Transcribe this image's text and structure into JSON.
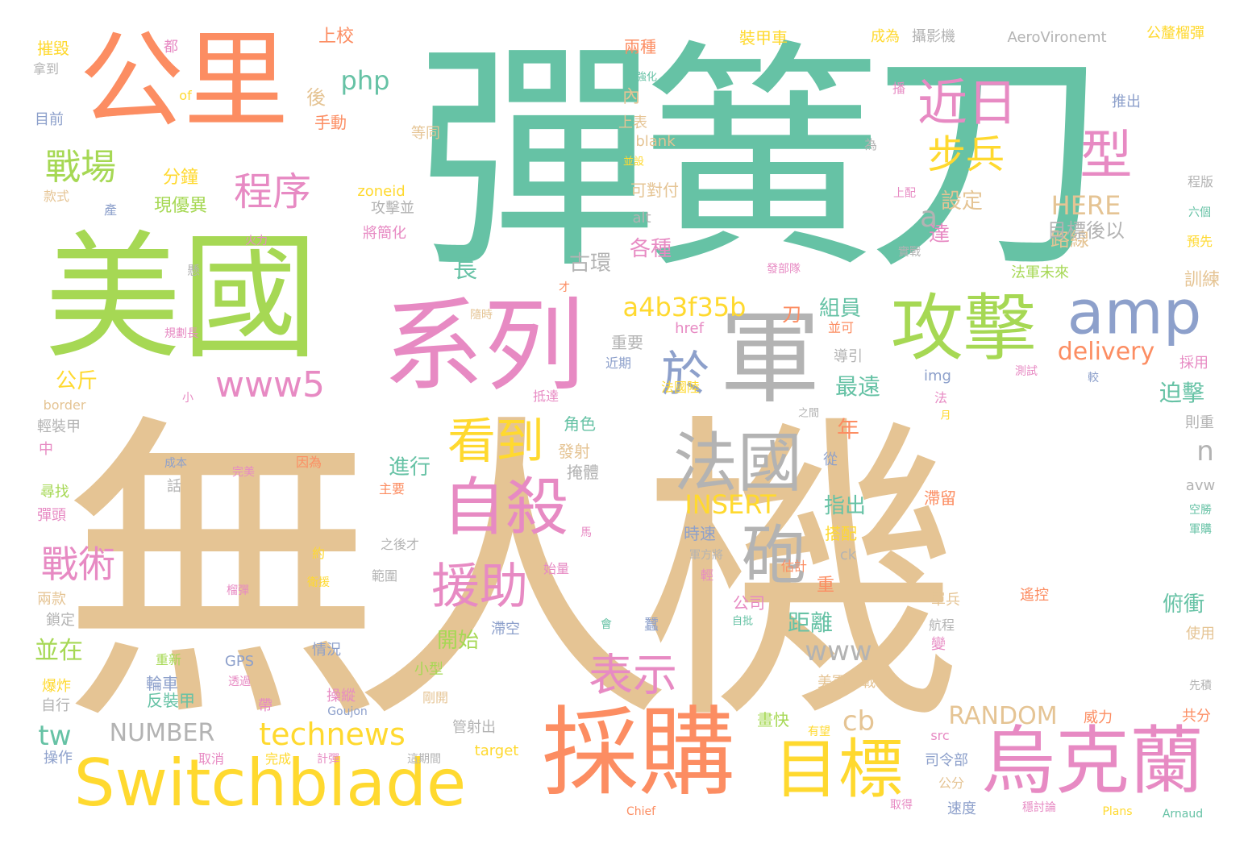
{
  "palette": {
    "tan": "#e5c494",
    "teal": "#66c2a5",
    "orange": "#fc8d62",
    "green": "#a6d854",
    "pink": "#e78ac3",
    "blue": "#8da0cb",
    "yellow": "#ffd92f",
    "gray": "#b3b3b3"
  },
  "words": [
    {
      "text": "無人機",
      "color": "tan"
    },
    {
      "text": "彈簧刀",
      "color": "teal"
    },
    {
      "text": "美國",
      "color": "green"
    },
    {
      "text": "公里",
      "color": "orange"
    },
    {
      "text": "系列",
      "color": "pink"
    },
    {
      "text": "軍",
      "color": "gray"
    },
    {
      "text": "攻擊",
      "color": "green"
    },
    {
      "text": "amp",
      "color": "blue"
    },
    {
      "text": "採購",
      "color": "orange"
    },
    {
      "text": "Switchblade",
      "color": "yellow"
    },
    {
      "text": "烏克蘭",
      "color": "pink"
    },
    {
      "text": "目標",
      "color": "yellow"
    },
    {
      "text": "法國",
      "color": "gray"
    },
    {
      "text": "自殺",
      "color": "pink"
    },
    {
      "text": "砲",
      "color": "gray"
    },
    {
      "text": "看到",
      "color": "yellow"
    },
    {
      "text": "於",
      "color": "blue"
    },
    {
      "text": "援助",
      "color": "pink"
    },
    {
      "text": "表示",
      "color": "pink"
    },
    {
      "text": "近日",
      "color": "pink"
    },
    {
      "text": "步兵",
      "color": "yellow"
    },
    {
      "text": "型",
      "color": "pink"
    },
    {
      "text": "戰場",
      "color": "green"
    },
    {
      "text": "程序",
      "color": "pink"
    },
    {
      "text": "www5",
      "color": "pink"
    },
    {
      "text": "戰術",
      "color": "pink"
    },
    {
      "text": "technews",
      "color": "yellow"
    },
    {
      "text": "a4b3f35b",
      "color": "yellow"
    },
    {
      "text": "delivery",
      "color": "orange"
    },
    {
      "text": "www",
      "color": "gray"
    },
    {
      "text": "RANDOM",
      "color": "tan"
    },
    {
      "text": "INSERT",
      "color": "yellow"
    },
    {
      "text": "NUMBER",
      "color": "gray"
    },
    {
      "text": "php",
      "color": "teal"
    },
    {
      "text": "HERE",
      "color": "tan"
    },
    {
      "text": "a",
      "color": "gray"
    },
    {
      "text": "tw",
      "color": "teal"
    },
    {
      "text": "cb",
      "color": "tan"
    },
    {
      "text": "n",
      "color": "gray"
    },
    {
      "text": "分鐘",
      "color": "yellow"
    },
    {
      "text": "並在",
      "color": "green"
    },
    {
      "text": "開始",
      "color": "green"
    },
    {
      "text": "距離",
      "color": "teal"
    },
    {
      "text": "指出",
      "color": "teal"
    },
    {
      "text": "進行",
      "color": "teal"
    },
    {
      "text": "組員",
      "color": "teal"
    },
    {
      "text": "最遠",
      "color": "teal"
    },
    {
      "text": "年",
      "color": "orange"
    },
    {
      "text": "迫擊",
      "color": "teal"
    },
    {
      "text": "俯衝",
      "color": "teal"
    },
    {
      "text": "公斤",
      "color": "yellow"
    },
    {
      "text": "長",
      "color": "teal"
    },
    {
      "text": "古環",
      "color": "gray"
    },
    {
      "text": "各種",
      "color": "pink"
    },
    {
      "text": "路線",
      "color": "tan"
    },
    {
      "text": "目標後以",
      "color": "gray"
    },
    {
      "text": "設定",
      "color": "tan"
    },
    {
      "text": "達",
      "color": "pink"
    },
    {
      "text": "訓練",
      "color": "tan"
    },
    {
      "text": "上校",
      "color": "orange"
    },
    {
      "text": "後",
      "color": "tan"
    },
    {
      "text": "內",
      "color": "tan"
    },
    {
      "text": "現優異",
      "color": "green"
    },
    {
      "text": "手動",
      "color": "orange"
    },
    {
      "text": "刀",
      "color": "orange"
    },
    {
      "text": "時速",
      "color": "blue"
    },
    {
      "text": "公司",
      "color": "pink"
    },
    {
      "text": "裝甲車",
      "color": "yellow"
    },
    {
      "text": "成為",
      "color": "yellow"
    },
    {
      "text": "攝影機",
      "color": "gray"
    },
    {
      "text": "AeroVironemt",
      "color": "gray"
    },
    {
      "text": "公釐榴彈",
      "color": "yellow"
    },
    {
      "text": "摧毀",
      "color": "yellow"
    },
    {
      "text": "兩種",
      "color": "orange"
    },
    {
      "text": "推出",
      "color": "blue"
    },
    {
      "text": "等同",
      "color": "tan"
    },
    {
      "text": "上表",
      "color": "tan"
    },
    {
      "text": "blank",
      "color": "tan"
    },
    {
      "text": "可對付",
      "color": "tan"
    },
    {
      "text": "zoneid",
      "color": "yellow"
    },
    {
      "text": "攻擊並",
      "color": "gray"
    },
    {
      "text": "將簡化",
      "color": "pink"
    },
    {
      "text": "alt",
      "color": "gray"
    },
    {
      "text": "href",
      "color": "pink"
    },
    {
      "text": "重要",
      "color": "gray"
    },
    {
      "text": "近期",
      "color": "blue"
    },
    {
      "text": "發射",
      "color": "tan"
    },
    {
      "text": "掩體",
      "color": "gray"
    },
    {
      "text": "角色",
      "color": "teal"
    },
    {
      "text": "抵達",
      "color": "pink"
    },
    {
      "text": "法國陸",
      "color": "yellow"
    },
    {
      "text": "法軍未來",
      "color": "green"
    },
    {
      "text": "採用",
      "color": "pink"
    },
    {
      "text": "測試",
      "color": "pink"
    },
    {
      "text": "則重",
      "color": "gray"
    },
    {
      "text": "img",
      "color": "blue"
    },
    {
      "text": "滯留",
      "color": "orange"
    },
    {
      "text": "滯空",
      "color": "blue"
    },
    {
      "text": "搭配",
      "color": "yellow"
    },
    {
      "text": "估計",
      "color": "orange"
    },
    {
      "text": "遙控",
      "color": "orange"
    },
    {
      "text": "單兵",
      "color": "tan"
    },
    {
      "text": "航程",
      "color": "gray"
    },
    {
      "text": "使用",
      "color": "tan"
    },
    {
      "text": "共分",
      "color": "orange"
    },
    {
      "text": "美軍特戰",
      "color": "tan"
    },
    {
      "text": "威力",
      "color": "orange"
    },
    {
      "text": "司令部",
      "color": "blue"
    },
    {
      "text": "速度",
      "color": "blue"
    },
    {
      "text": "公分",
      "color": "tan"
    },
    {
      "text": "畫快",
      "color": "green"
    },
    {
      "text": "管射出",
      "color": "gray"
    },
    {
      "text": "取消",
      "color": "pink"
    },
    {
      "text": "完成",
      "color": "yellow"
    },
    {
      "text": "target",
      "color": "yellow"
    },
    {
      "text": "操作",
      "color": "blue"
    },
    {
      "text": "自行",
      "color": "gray"
    },
    {
      "text": "反裝甲",
      "color": "teal"
    },
    {
      "text": "輪車",
      "color": "blue"
    },
    {
      "text": "GPS",
      "color": "blue"
    },
    {
      "text": "情況",
      "color": "blue"
    },
    {
      "text": "小型",
      "color": "green"
    },
    {
      "text": "剛開",
      "color": "tan"
    },
    {
      "text": "爆炸",
      "color": "yellow"
    },
    {
      "text": "鎖定",
      "color": "gray"
    },
    {
      "text": "兩款",
      "color": "tan"
    },
    {
      "text": "彈頭",
      "color": "pink"
    },
    {
      "text": "尋找",
      "color": "green"
    },
    {
      "text": "中",
      "color": "pink"
    },
    {
      "text": "輕裝甲",
      "color": "gray"
    },
    {
      "text": "border",
      "color": "tan"
    },
    {
      "text": "主要",
      "color": "orange"
    },
    {
      "text": "之後才",
      "color": "gray"
    },
    {
      "text": "範圍",
      "color": "gray"
    },
    {
      "text": "約",
      "color": "yellow"
    },
    {
      "text": "話",
      "color": "gray"
    },
    {
      "text": "因為",
      "color": "orange"
    },
    {
      "text": "ck",
      "color": "gray"
    },
    {
      "text": "從",
      "color": "blue"
    },
    {
      "text": "avw",
      "color": "gray"
    },
    {
      "text": "目前",
      "color": "blue"
    },
    {
      "text": "拿到",
      "color": "gray"
    },
    {
      "text": "都",
      "color": "pink"
    },
    {
      "text": "of",
      "color": "yellow"
    },
    {
      "text": "款式",
      "color": "tan"
    },
    {
      "text": "產",
      "color": "blue"
    },
    {
      "text": "為",
      "color": "gray"
    },
    {
      "text": "程版",
      "color": "gray"
    },
    {
      "text": "六個",
      "color": "teal"
    },
    {
      "text": "預先",
      "color": "yellow"
    },
    {
      "text": "實戰",
      "color": "gray"
    },
    {
      "text": "發部隊",
      "color": "pink"
    },
    {
      "text": "隨時",
      "color": "tan"
    },
    {
      "text": "火力",
      "color": "pink"
    },
    {
      "text": "懸",
      "color": "gray"
    },
    {
      "text": "規劃長",
      "color": "pink"
    },
    {
      "text": "小",
      "color": "pink"
    },
    {
      "text": "成本",
      "color": "blue"
    },
    {
      "text": "完美",
      "color": "pink"
    },
    {
      "text": "蠶",
      "color": "blue"
    },
    {
      "text": "會",
      "color": "teal"
    },
    {
      "text": "自批",
      "color": "teal"
    },
    {
      "text": "輕",
      "color": "pink"
    },
    {
      "text": "軍方將",
      "color": "gray"
    },
    {
      "text": "始量",
      "color": "pink"
    },
    {
      "text": "有望",
      "color": "yellow"
    },
    {
      "text": "src",
      "color": "pink"
    },
    {
      "text": "Goujon",
      "color": "blue"
    },
    {
      "text": "Chief",
      "color": "orange"
    },
    {
      "text": "Plans",
      "color": "yellow"
    },
    {
      "text": "Arnaud",
      "color": "teal"
    },
    {
      "text": "取得",
      "color": "pink"
    },
    {
      "text": "穩討論",
      "color": "pink"
    },
    {
      "text": "先積",
      "color": "gray"
    },
    {
      "text": "空勝",
      "color": "teal"
    },
    {
      "text": "軍購",
      "color": "teal"
    },
    {
      "text": "導引",
      "color": "gray"
    },
    {
      "text": "並可",
      "color": "orange"
    },
    {
      "text": "法",
      "color": "pink"
    },
    {
      "text": "月",
      "color": "yellow"
    },
    {
      "text": "之間",
      "color": "gray"
    },
    {
      "text": "較",
      "color": "blue"
    },
    {
      "text": "重新",
      "color": "green"
    },
    {
      "text": "衛援",
      "color": "yellow"
    },
    {
      "text": "操縱",
      "color": "pink"
    },
    {
      "text": "透過",
      "color": "pink"
    },
    {
      "text": "帶",
      "color": "pink"
    },
    {
      "text": "計彈",
      "color": "pink"
    },
    {
      "text": "這期間",
      "color": "gray"
    },
    {
      "text": "榴彈",
      "color": "pink"
    },
    {
      "text": "變",
      "color": "pink"
    },
    {
      "text": "並設",
      "color": "yellow"
    },
    {
      "text": "上配",
      "color": "pink"
    },
    {
      "text": "播",
      "color": "pink"
    },
    {
      "text": "強化",
      "color": "teal"
    },
    {
      "text": "馬",
      "color": "pink"
    },
    {
      "text": "才",
      "color": "orange"
    },
    {
      "text": "重",
      "color": "orange"
    }
  ]
}
